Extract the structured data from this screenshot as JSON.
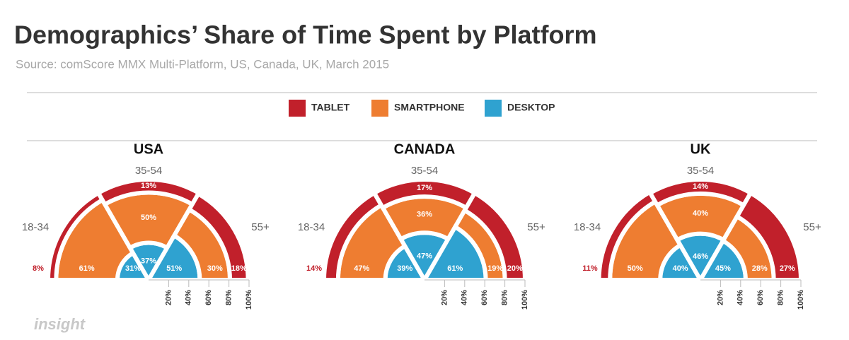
{
  "title": "Demographics’ Share of Time Spent by Platform",
  "subtitle": "Source: comScore MMX Multi-Platform, US, Canada, UK, March 2015",
  "logo": "insight",
  "chart_data": [
    {
      "type": "radial-stacked",
      "title": "USA",
      "categories": [
        "18-34",
        "35-54",
        "55+"
      ],
      "series": [
        {
          "name": "TABLET",
          "color": "#c1202b",
          "values": [
            8,
            13,
            18
          ],
          "value_labels": [
            "8%",
            "13%",
            "18%"
          ]
        },
        {
          "name": "SMARTPHONE",
          "color": "#ee7d31",
          "values": [
            61,
            50,
            30
          ],
          "value_labels": [
            "61%",
            "50%",
            "30%"
          ]
        },
        {
          "name": "DESKTOP",
          "color": "#2fa2d0",
          "values": [
            31,
            37,
            51
          ],
          "value_labels": [
            "31%",
            "37%",
            "51%"
          ]
        }
      ],
      "rlim": [
        0,
        100
      ],
      "rticks": [
        {
          "value": 20,
          "label": "20%"
        },
        {
          "value": 40,
          "label": "40%"
        },
        {
          "value": 60,
          "label": "60%"
        },
        {
          "value": 80,
          "label": "80%"
        },
        {
          "value": 100,
          "label": "100%"
        }
      ]
    },
    {
      "type": "radial-stacked",
      "title": "CANADA",
      "categories": [
        "18-34",
        "35-54",
        "55+"
      ],
      "series": [
        {
          "name": "TABLET",
          "color": "#c1202b",
          "values": [
            14,
            17,
            20
          ],
          "value_labels": [
            "14%",
            "17%",
            "20%"
          ]
        },
        {
          "name": "SMARTPHONE",
          "color": "#ee7d31",
          "values": [
            47,
            36,
            19
          ],
          "value_labels": [
            "47%",
            "36%",
            "19%"
          ]
        },
        {
          "name": "DESKTOP",
          "color": "#2fa2d0",
          "values": [
            39,
            47,
            61
          ],
          "value_labels": [
            "39%",
            "47%",
            "61%"
          ]
        }
      ],
      "rlim": [
        0,
        100
      ],
      "rticks": [
        {
          "value": 20,
          "label": "20%"
        },
        {
          "value": 40,
          "label": "40%"
        },
        {
          "value": 60,
          "label": "60%"
        },
        {
          "value": 80,
          "label": "80%"
        },
        {
          "value": 100,
          "label": "100%"
        }
      ]
    },
    {
      "type": "radial-stacked",
      "title": "UK",
      "categories": [
        "18-34",
        "35-54",
        "55+"
      ],
      "series": [
        {
          "name": "TABLET",
          "color": "#c1202b",
          "values": [
            11,
            14,
            27
          ],
          "value_labels": [
            "11%",
            "14%",
            "27%"
          ]
        },
        {
          "name": "SMARTPHONE",
          "color": "#ee7d31",
          "values": [
            50,
            40,
            28
          ],
          "value_labels": [
            "50%",
            "40%",
            "28%"
          ]
        },
        {
          "name": "DESKTOP",
          "color": "#2fa2d0",
          "values": [
            40,
            46,
            45
          ],
          "value_labels": [
            "40%",
            "46%",
            "45%"
          ]
        }
      ],
      "rlim": [
        0,
        100
      ],
      "rticks": [
        {
          "value": 20,
          "label": "20%"
        },
        {
          "value": 40,
          "label": "40%"
        },
        {
          "value": 60,
          "label": "60%"
        },
        {
          "value": 80,
          "label": "80%"
        },
        {
          "value": 100,
          "label": "100%"
        }
      ]
    }
  ]
}
